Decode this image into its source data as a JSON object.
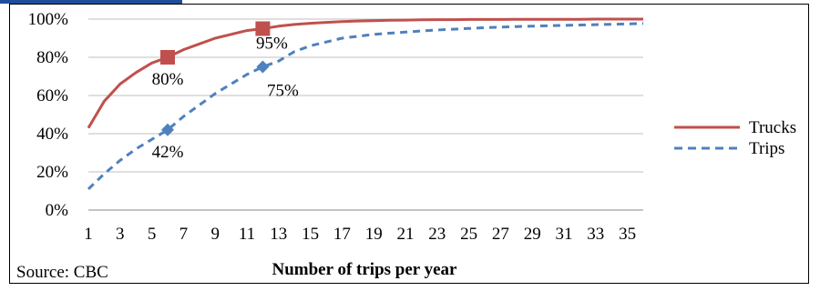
{
  "chart_data": {
    "type": "line",
    "title": "",
    "xlabel": "Number of trips per year",
    "ylabel": "",
    "source": "Source: CBC",
    "xlim": [
      1,
      36
    ],
    "ylim": [
      0,
      100
    ],
    "x_ticks": [
      1,
      3,
      5,
      7,
      9,
      11,
      13,
      15,
      17,
      19,
      21,
      23,
      25,
      27,
      29,
      31,
      33,
      35
    ],
    "y_ticks": [
      "0%",
      "20%",
      "40%",
      "60%",
      "80%",
      "100%"
    ],
    "grid": "horizontal",
    "legend_position": "right",
    "series": [
      {
        "name": "Trucks",
        "color": "#c0504d",
        "style": "solid",
        "x": [
          1,
          2,
          3,
          4,
          5,
          6,
          7,
          8,
          9,
          10,
          11,
          12,
          13,
          14,
          15,
          16,
          17,
          18,
          19,
          20,
          21,
          22,
          23,
          24,
          25,
          26,
          27,
          28,
          29,
          30,
          31,
          32,
          33,
          34,
          35,
          36
        ],
        "values": [
          43,
          57,
          66,
          72,
          77,
          80,
          84,
          87,
          90,
          92,
          94,
          95,
          96.3,
          97.2,
          97.8,
          98.3,
          98.7,
          99,
          99.2,
          99.4,
          99.5,
          99.6,
          99.7,
          99.7,
          99.8,
          99.8,
          99.8,
          99.9,
          99.9,
          99.9,
          99.9,
          99.9,
          100,
          100,
          100,
          100
        ]
      },
      {
        "name": "Trips",
        "color": "#4f81bd",
        "style": "dashed",
        "x": [
          1,
          2,
          3,
          4,
          5,
          6,
          7,
          8,
          9,
          10,
          11,
          12,
          13,
          14,
          15,
          16,
          17,
          18,
          19,
          20,
          21,
          22,
          23,
          24,
          25,
          26,
          27,
          28,
          29,
          30,
          31,
          32,
          33,
          34,
          35,
          36
        ],
        "values": [
          11,
          19,
          26,
          32,
          37,
          42,
          49,
          55,
          61,
          66,
          71,
          75,
          78,
          83,
          86,
          88,
          90,
          91,
          92,
          92.6,
          93.2,
          93.8,
          94.3,
          94.7,
          95.1,
          95.5,
          95.8,
          96.1,
          96.3,
          96.5,
          96.7,
          96.9,
          97.1,
          97.3,
          97.5,
          97.7
        ]
      }
    ],
    "markers": [
      {
        "series": "Trucks",
        "x": 6,
        "y": 80,
        "label": "80%",
        "shape": "square"
      },
      {
        "series": "Trucks",
        "x": 12,
        "y": 95,
        "label": "95%",
        "shape": "square"
      },
      {
        "series": "Trips",
        "x": 6,
        "y": 42,
        "label": "42%",
        "shape": "diamond"
      },
      {
        "series": "Trips",
        "x": 12,
        "y": 75,
        "label": "75%",
        "shape": "diamond"
      }
    ]
  }
}
